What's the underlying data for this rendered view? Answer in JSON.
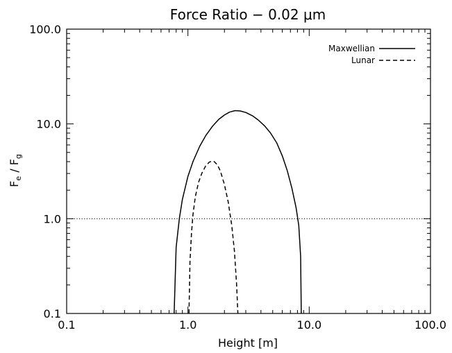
{
  "chart_data": {
    "type": "line",
    "title": "Force Ratio − 0.02 μm",
    "xlabel": "Height [m]",
    "ylabel": {
      "main": "F",
      "sub1": "e",
      "sep": " / F",
      "sub2": "g"
    },
    "xscale": "log",
    "yscale": "log",
    "xlim": [
      0.1,
      100.0
    ],
    "ylim": [
      0.1,
      100.0
    ],
    "xticks": [
      {
        "value": 0.1,
        "label": "0.1"
      },
      {
        "value": 1.0,
        "label": "1.0"
      },
      {
        "value": 10.0,
        "label": "10.0"
      },
      {
        "value": 100.0,
        "label": "100.0"
      }
    ],
    "yticks": [
      {
        "value": 0.1,
        "label": "0.1"
      },
      {
        "value": 1.0,
        "label": "1.0"
      },
      {
        "value": 10.0,
        "label": "10.0"
      },
      {
        "value": 100.0,
        "label": "100.0"
      }
    ],
    "legend_position": "top-right",
    "reference_line": {
      "y": 1.0,
      "style": "dotted"
    },
    "series": [
      {
        "name": "Maxwellian",
        "style": "solid",
        "x": [
          0.77,
          0.8,
          0.85,
          0.9,
          1.0,
          1.1,
          1.25,
          1.4,
          1.6,
          1.8,
          2.0,
          2.2,
          2.45,
          2.7,
          3.0,
          3.4,
          3.8,
          4.3,
          4.8,
          5.4,
          6.0,
          6.6,
          7.2,
          7.8,
          8.2,
          8.5,
          8.6
        ],
        "y": [
          0.1,
          0.5,
          1.0,
          1.6,
          2.8,
          4.0,
          5.8,
          7.5,
          9.5,
          11.2,
          12.4,
          13.3,
          13.8,
          13.7,
          13.2,
          12.2,
          11.0,
          9.5,
          8.0,
          6.3,
          4.6,
          3.2,
          2.1,
          1.3,
          0.85,
          0.4,
          0.1
        ]
      },
      {
        "name": "Lunar",
        "style": "dashed",
        "x": [
          1.02,
          1.04,
          1.07,
          1.1,
          1.15,
          1.22,
          1.3,
          1.4,
          1.5,
          1.58,
          1.65,
          1.75,
          1.85,
          2.0,
          2.15,
          2.3,
          2.42,
          2.52,
          2.58
        ],
        "y": [
          0.1,
          0.35,
          0.7,
          1.1,
          1.7,
          2.4,
          3.0,
          3.6,
          3.95,
          4.05,
          4.0,
          3.7,
          3.2,
          2.3,
          1.5,
          0.85,
          0.45,
          0.2,
          0.1
        ]
      }
    ]
  }
}
